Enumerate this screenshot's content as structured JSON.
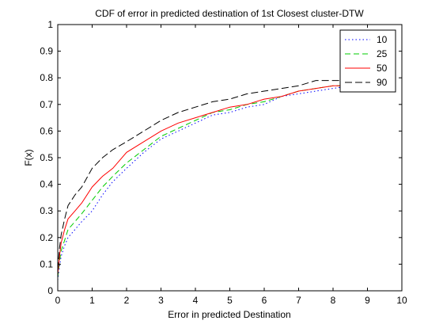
{
  "chart_data": {
    "type": "line",
    "title": "CDF of error in predicted destination of 1st Closest cluster-DTW",
    "xlabel": "Error in predicted Destination",
    "ylabel": "F(x)",
    "xlim": [
      0,
      10
    ],
    "ylim": [
      0,
      1
    ],
    "xticks": [
      "0",
      "1",
      "2",
      "3",
      "4",
      "5",
      "6",
      "7",
      "8",
      "9",
      "10"
    ],
    "yticks": [
      "0",
      "0.1",
      "0.2",
      "0.3",
      "0.4",
      "0.5",
      "0.6",
      "0.7",
      "0.8",
      "0.9",
      "1"
    ],
    "grid": false,
    "legend_position": "top-right",
    "series": [
      {
        "name": "10",
        "color": "#0000ff",
        "dash": "dotted",
        "x": [
          0,
          0.05,
          0.1,
          0.2,
          0.3,
          0.5,
          0.7,
          1.0,
          1.3,
          1.6,
          2.0,
          2.5,
          3.0,
          3.5,
          4.0,
          4.5,
          5.0,
          5.5,
          6.0,
          6.5,
          7.0,
          7.5,
          8.0,
          8.5
        ],
        "y": [
          0.04,
          0.09,
          0.13,
          0.17,
          0.2,
          0.23,
          0.26,
          0.3,
          0.36,
          0.41,
          0.46,
          0.52,
          0.57,
          0.6,
          0.63,
          0.66,
          0.67,
          0.69,
          0.7,
          0.73,
          0.74,
          0.75,
          0.76,
          0.77
        ]
      },
      {
        "name": "25",
        "color": "#00cc00",
        "dash": "dashed",
        "x": [
          0,
          0.05,
          0.1,
          0.2,
          0.3,
          0.5,
          0.7,
          1.0,
          1.3,
          1.6,
          2.0,
          2.5,
          3.0,
          3.5,
          4.0,
          4.5,
          5.0,
          5.5,
          6.0,
          6.5,
          7.0,
          7.5,
          8.0,
          8.5
        ],
        "y": [
          0.05,
          0.11,
          0.15,
          0.19,
          0.23,
          0.26,
          0.29,
          0.34,
          0.39,
          0.43,
          0.48,
          0.53,
          0.58,
          0.61,
          0.64,
          0.67,
          0.68,
          0.7,
          0.71,
          0.73,
          0.75,
          0.76,
          0.77,
          0.77
        ]
      },
      {
        "name": "50",
        "color": "#ff0000",
        "dash": "solid",
        "x": [
          0,
          0.05,
          0.1,
          0.2,
          0.3,
          0.5,
          0.7,
          1.0,
          1.3,
          1.6,
          2.0,
          2.5,
          3.0,
          3.5,
          4.0,
          4.5,
          5.0,
          5.5,
          6.0,
          6.5,
          7.0,
          7.5,
          8.0,
          8.5
        ],
        "y": [
          0.06,
          0.13,
          0.18,
          0.23,
          0.27,
          0.3,
          0.33,
          0.39,
          0.43,
          0.46,
          0.52,
          0.56,
          0.6,
          0.63,
          0.65,
          0.67,
          0.69,
          0.7,
          0.72,
          0.73,
          0.75,
          0.76,
          0.77,
          0.77
        ]
      },
      {
        "name": "90",
        "color": "#000000",
        "dash": "longdash",
        "x": [
          0,
          0.05,
          0.1,
          0.2,
          0.3,
          0.5,
          0.7,
          1.0,
          1.3,
          1.6,
          2.0,
          2.5,
          3.0,
          3.5,
          4.0,
          4.5,
          5.0,
          5.5,
          6.0,
          6.5,
          7.0,
          7.5,
          8.0,
          8.5
        ],
        "y": [
          0.08,
          0.16,
          0.21,
          0.27,
          0.32,
          0.36,
          0.39,
          0.46,
          0.5,
          0.53,
          0.56,
          0.6,
          0.64,
          0.67,
          0.69,
          0.71,
          0.72,
          0.74,
          0.75,
          0.76,
          0.77,
          0.79,
          0.79,
          0.79
        ]
      }
    ]
  }
}
